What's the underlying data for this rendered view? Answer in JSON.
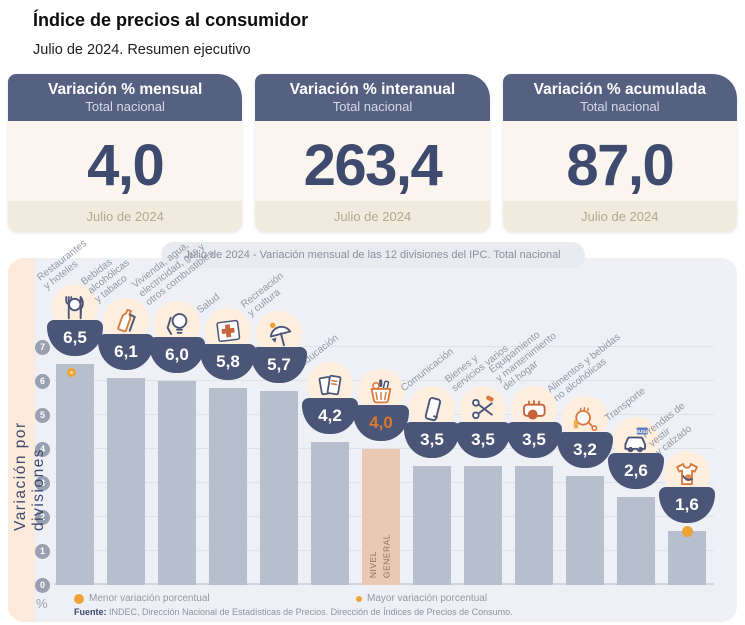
{
  "header": {
    "title": "Índice de precios al consumidor",
    "subtitle": "Julio de 2024. Resumen ejecutivo"
  },
  "cards": [
    {
      "title": "Variación % mensual",
      "subtitle": "Total nacional",
      "value": "4,0",
      "period": "Julio de 2024"
    },
    {
      "title": "Variación % interanual",
      "subtitle": "Total nacional",
      "value": "263,4",
      "period": "Julio de 2024"
    },
    {
      "title": "Variación % acumulada",
      "subtitle": "Total nacional",
      "value": "87,0",
      "period": "Julio de 2024"
    }
  ],
  "chart_data": {
    "type": "bar",
    "title": "Julio de 2024 - Variación mensual de las 12 divisiones del IPC. Total nacional",
    "ylabel": "Variación por divisiones",
    "unit": "%",
    "ylim": [
      0,
      7
    ],
    "yticks": [
      0,
      1,
      2,
      3,
      4,
      5,
      6,
      7
    ],
    "grid": true,
    "legend_position": "bottom-left",
    "items": [
      {
        "label": "Restaurantes\ny hoteles",
        "value": 6.5,
        "value_label": "6,5",
        "icon": "cutlery-icon",
        "marker": "mayor"
      },
      {
        "label": "Bebidas\nalcohólicas\ny tabaco",
        "value": 6.1,
        "value_label": "6,1",
        "icon": "bottle-icon"
      },
      {
        "label": "Vivienda, agua,\nelectricidad, gas y\notros combustibles",
        "value": 6.0,
        "value_label": "6,0",
        "icon": "lightbulb-icon"
      },
      {
        "label": "Salud",
        "value": 5.8,
        "value_label": "5,8",
        "icon": "medical-cross-icon"
      },
      {
        "label": "Recreación\ny cultura",
        "value": 5.7,
        "value_label": "5,7",
        "icon": "umbrella-icon"
      },
      {
        "label": "Educación",
        "value": 4.2,
        "value_label": "4,2",
        "icon": "books-icon"
      },
      {
        "label": "",
        "value": 4.0,
        "value_label": "4,0",
        "icon": "basket-icon",
        "highlight": true,
        "bar_label": "NIVEL\nGENERAL"
      },
      {
        "label": "Comunicación",
        "value": 3.5,
        "value_label": "3,5",
        "icon": "phone-icon"
      },
      {
        "label": "Bienes y\nservicios varios",
        "value": 3.5,
        "value_label": "3,5",
        "icon": "scissors-icon"
      },
      {
        "label": "Equipamiento\ny mantenimiento\ndel hogar",
        "value": 3.5,
        "value_label": "3,5",
        "icon": "toaster-icon"
      },
      {
        "label": "Alimentos y bebidas\nno alcohólicas",
        "value": 3.2,
        "value_label": "3,2",
        "icon": "poultry-icon"
      },
      {
        "label": "Transporte",
        "value": 2.6,
        "value_label": "2,6",
        "icon": "car-icon"
      },
      {
        "label": "Prendas de vestir\ny calzado",
        "value": 1.6,
        "value_label": "1,6",
        "icon": "tshirt-icon",
        "marker": "menor"
      }
    ],
    "legend": [
      {
        "marker": "solid-dot",
        "label": "Menor variación porcentual"
      },
      {
        "marker": "ring-dot",
        "label": "Mayor variación porcentual"
      }
    ],
    "source_bold": "Fuente:",
    "source_text": " INDEC, Dirección Nacional de Estadísticas de Precios. Dirección de Índices de Precios de Consumo."
  },
  "colors": {
    "card_header": "#566080",
    "value_navy": "#3e4a6e",
    "bar": "#b7bfce",
    "highlight_bar": "#e9c9b4",
    "badge": "#4a5578",
    "accent_orange": "#d97b41",
    "marker_gold": "#eda437",
    "panel_bg": "#eef0f5",
    "strip_peach": "#fcebdd"
  }
}
